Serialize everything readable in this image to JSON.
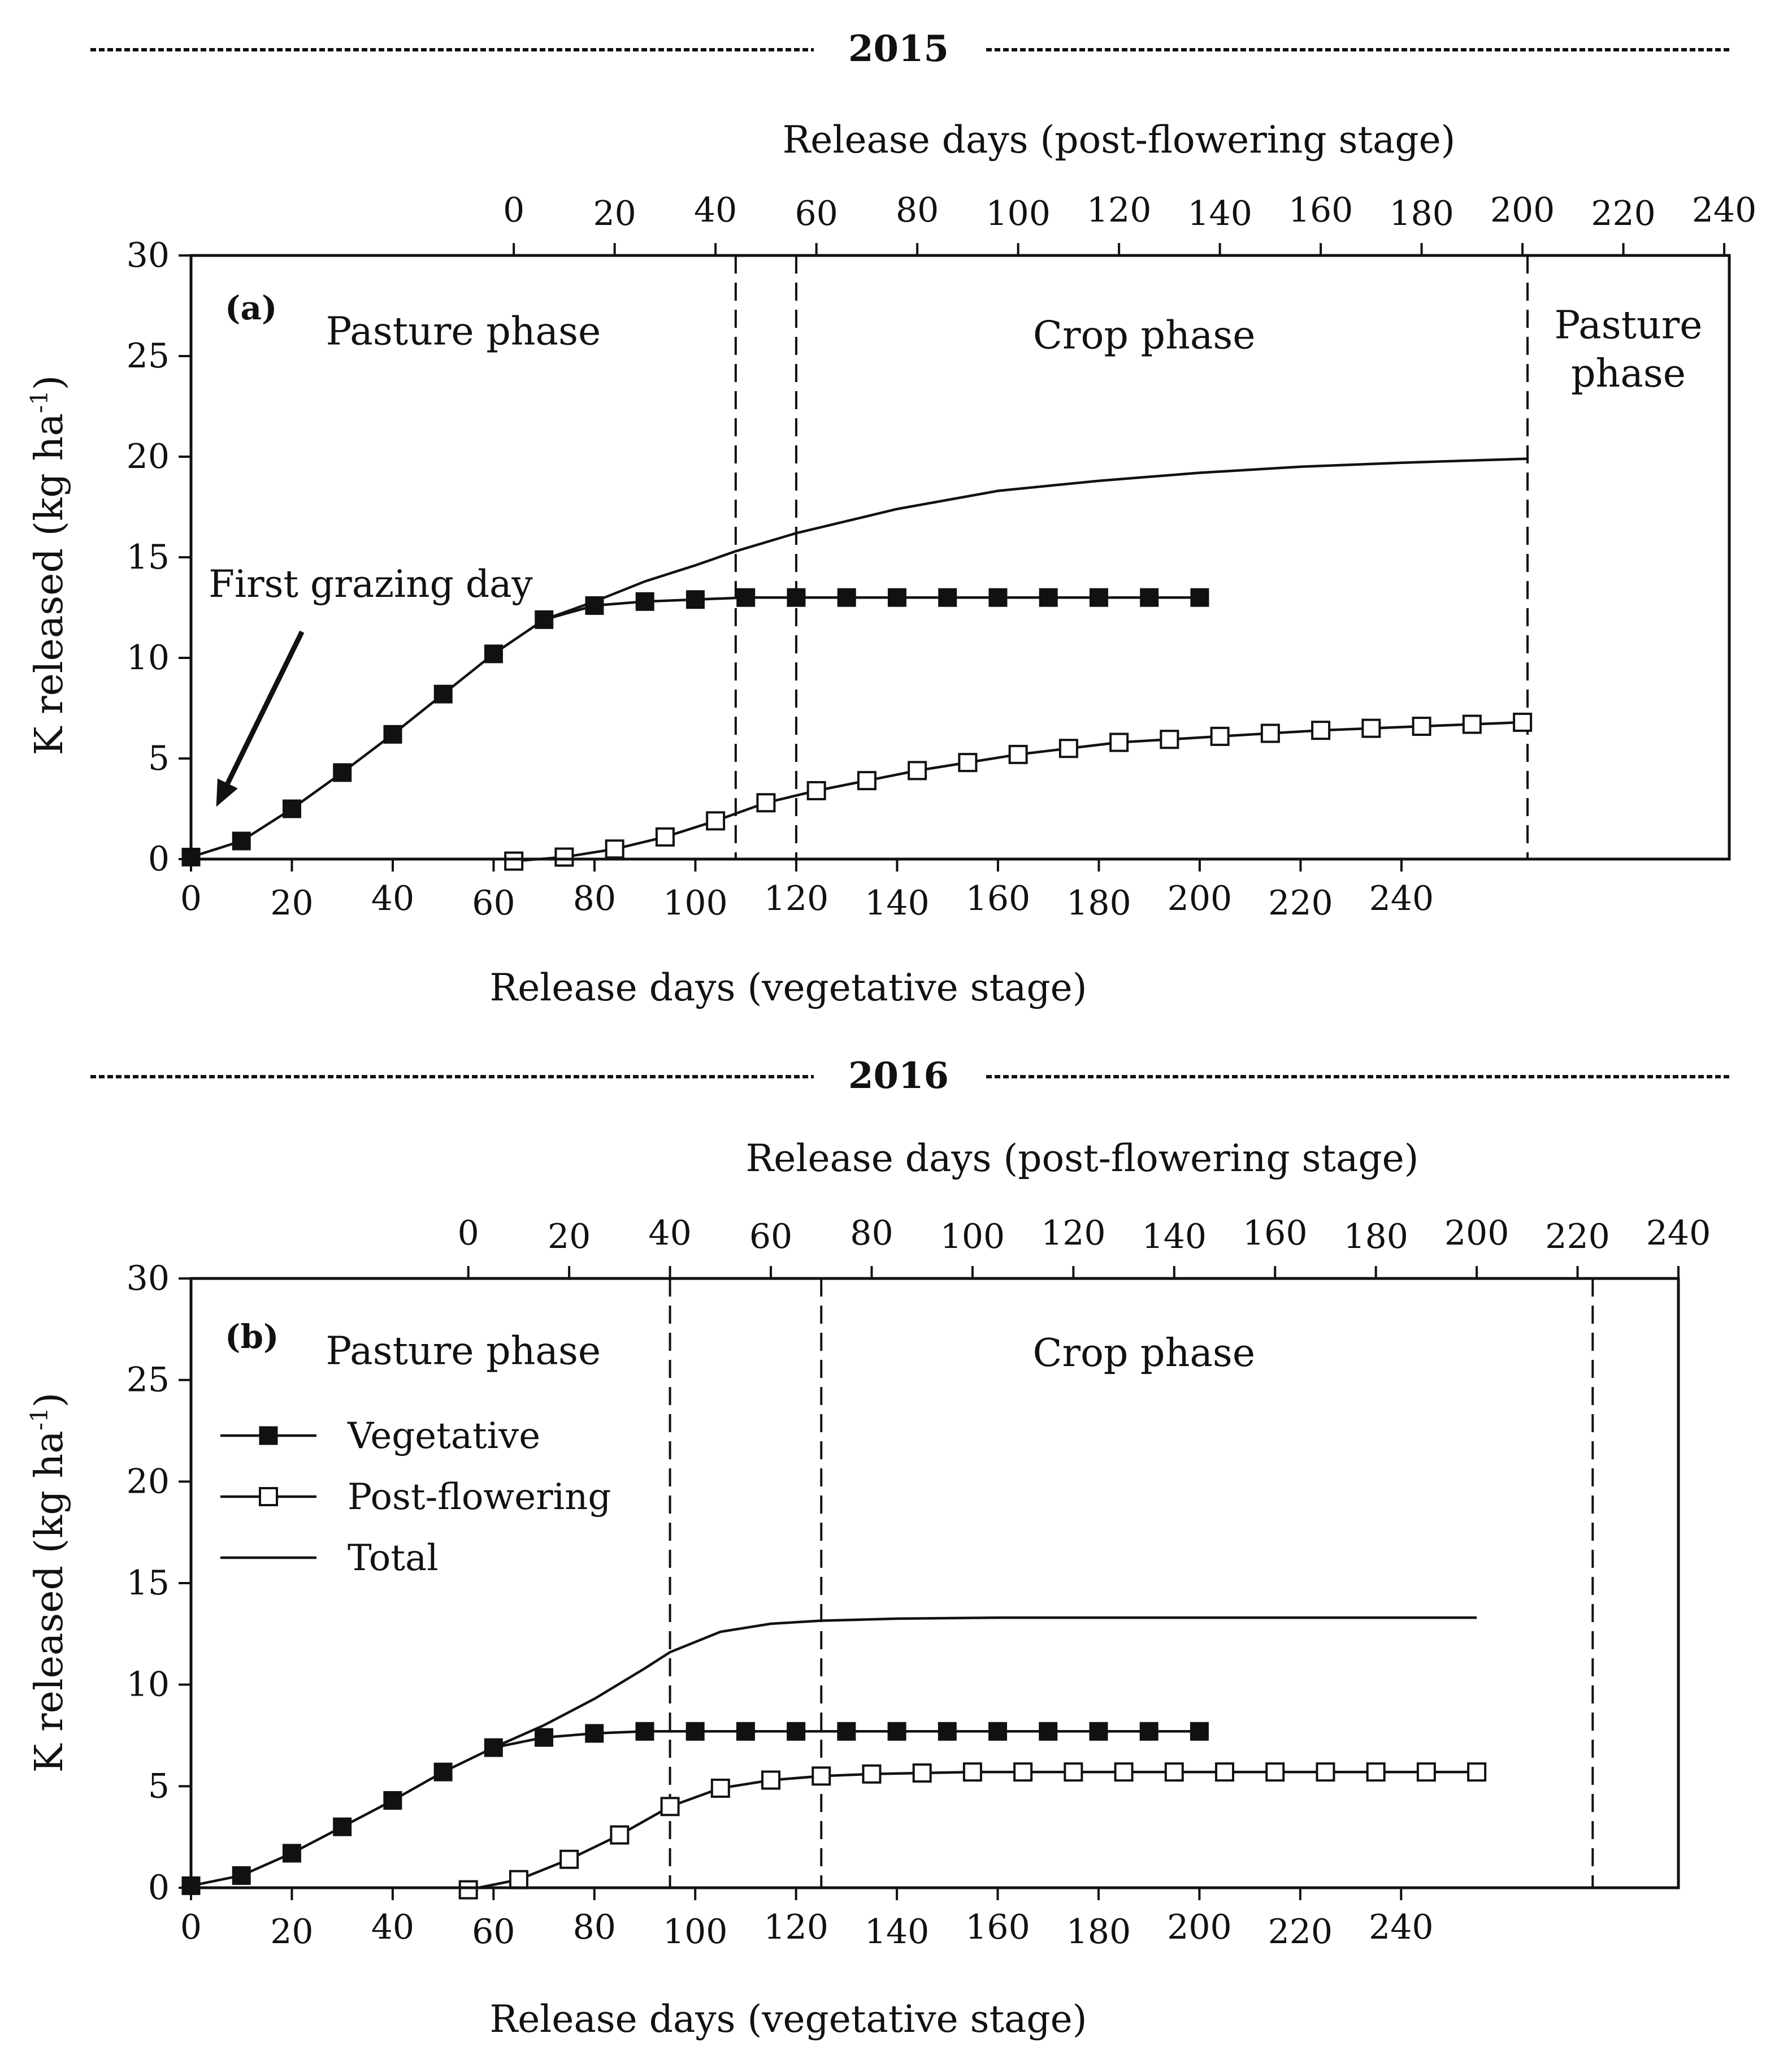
{
  "chart_data": [
    {
      "id": "a",
      "type": "line",
      "year_header": "2015",
      "panel_label": "(a)",
      "title_top": "Release days (post-flowering stage)",
      "xlabel": "Release days (vegetative stage)",
      "ylabel": "K released (kg ha",
      "ylabel_sup": "-1",
      "ylabel_tail": ")",
      "ylim": [
        0,
        30
      ],
      "yticks": [
        0,
        5,
        10,
        15,
        20,
        25,
        30
      ],
      "xlim": [
        0,
        305
      ],
      "xticks": [
        0,
        20,
        40,
        60,
        80,
        100,
        120,
        140,
        160,
        180,
        200,
        220,
        240
      ],
      "x2_offset": 64,
      "x2ticks": [
        0,
        20,
        40,
        60,
        80,
        100,
        120,
        140,
        160,
        180,
        200,
        220,
        240
      ],
      "phase_lines": [
        108,
        120,
        265
      ],
      "phase_labels": [
        {
          "text": "Pasture phase",
          "x": 54,
          "y": 26.2
        },
        {
          "text": "Crop phase",
          "x": 189,
          "y": 26.0
        },
        {
          "text": "Pasture",
          "x": 285,
          "y": 26.5
        },
        {
          "text": "phase",
          "x": 285,
          "y": 24.1
        }
      ],
      "annotation": {
        "text": "First grazing day",
        "text_x": 3.5,
        "text_y": 13.6,
        "arrow_from": [
          22,
          11.3
        ],
        "arrow_to": [
          5,
          2.6
        ]
      },
      "series": [
        {
          "name": "Vegetative",
          "marker": "filled",
          "x": [
            0,
            10,
            20,
            30,
            40,
            50,
            60,
            70,
            80,
            90,
            100,
            110,
            120,
            130,
            140,
            150,
            160,
            170,
            180,
            190,
            200
          ],
          "y": [
            0.1,
            0.9,
            2.5,
            4.3,
            6.2,
            8.2,
            10.2,
            11.9,
            12.6,
            12.8,
            12.9,
            13.0,
            13.0,
            13.0,
            13.0,
            13.0,
            13.0,
            13.0,
            13.0,
            13.0,
            13.0
          ]
        },
        {
          "name": "Post-flowering",
          "marker": "open",
          "axis": "top",
          "x": [
            0,
            10,
            20,
            30,
            40,
            50,
            60,
            70,
            80,
            90,
            100,
            110,
            120,
            130,
            140,
            150,
            160,
            170,
            180,
            190,
            200
          ],
          "y": [
            -0.1,
            0.1,
            0.5,
            1.1,
            1.9,
            2.8,
            3.4,
            3.9,
            4.4,
            4.8,
            5.2,
            5.5,
            5.8,
            5.95,
            6.1,
            6.25,
            6.4,
            6.5,
            6.6,
            6.7,
            6.8
          ]
        },
        {
          "name": "Total",
          "marker": "none",
          "x": [
            70,
            80,
            90,
            100,
            108,
            120,
            140,
            160,
            180,
            200,
            220,
            240,
            265
          ],
          "y": [
            11.9,
            12.8,
            13.8,
            14.6,
            15.3,
            16.2,
            17.4,
            18.3,
            18.8,
            19.2,
            19.5,
            19.7,
            19.9
          ]
        }
      ]
    },
    {
      "id": "b",
      "type": "line",
      "year_header": "2016",
      "panel_label": "(b)",
      "title_top": "Release days (post-flowering stage)",
      "xlabel": "Release days (vegetative stage)",
      "ylabel": "K released (kg ha",
      "ylabel_sup": "-1",
      "ylabel_tail": ")",
      "ylim": [
        0,
        30
      ],
      "yticks": [
        0,
        5,
        10,
        15,
        20,
        25,
        30
      ],
      "xlim": [
        0,
        295
      ],
      "xticks": [
        0,
        20,
        40,
        60,
        80,
        100,
        120,
        140,
        160,
        180,
        200,
        220,
        240
      ],
      "x2_offset": 55,
      "x2ticks": [
        0,
        20,
        40,
        60,
        80,
        100,
        120,
        140,
        160,
        180,
        200,
        220,
        240
      ],
      "phase_lines": [
        95,
        125,
        278
      ],
      "phase_labels": [
        {
          "text": "Pasture phase",
          "x": 54,
          "y": 26.4
        },
        {
          "text": "Crop phase",
          "x": 189,
          "y": 26.3
        }
      ],
      "legend": [
        {
          "label": "Vegetative",
          "marker": "filled"
        },
        {
          "label": "Post-flowering",
          "marker": "open"
        },
        {
          "label": "Total",
          "marker": "none"
        }
      ],
      "series": [
        {
          "name": "Vegetative",
          "marker": "filled",
          "x": [
            0,
            10,
            20,
            30,
            40,
            50,
            60,
            70,
            80,
            90,
            100,
            110,
            120,
            130,
            140,
            150,
            160,
            170,
            180,
            190,
            200
          ],
          "y": [
            0.1,
            0.6,
            1.7,
            3.0,
            4.3,
            5.7,
            6.9,
            7.4,
            7.6,
            7.7,
            7.7,
            7.7,
            7.7,
            7.7,
            7.7,
            7.7,
            7.7,
            7.7,
            7.7,
            7.7,
            7.7
          ]
        },
        {
          "name": "Post-flowering",
          "marker": "open",
          "axis": "top",
          "x": [
            0,
            10,
            20,
            30,
            40,
            50,
            60,
            70,
            80,
            90,
            100,
            110,
            120,
            130,
            140,
            150,
            160,
            170,
            180,
            190,
            200
          ],
          "y": [
            -0.1,
            0.4,
            1.4,
            2.6,
            4.0,
            4.9,
            5.3,
            5.5,
            5.6,
            5.65,
            5.7,
            5.7,
            5.7,
            5.7,
            5.7,
            5.7,
            5.7,
            5.7,
            5.7,
            5.7,
            5.7
          ]
        },
        {
          "name": "Total",
          "marker": "none",
          "x": [
            60,
            70,
            80,
            90,
            95,
            105,
            115,
            125,
            140,
            160,
            180,
            200,
            230,
            255
          ],
          "y": [
            6.9,
            8.0,
            9.3,
            10.8,
            11.6,
            12.6,
            13.0,
            13.15,
            13.25,
            13.3,
            13.3,
            13.3,
            13.3,
            13.3
          ]
        }
      ]
    }
  ]
}
